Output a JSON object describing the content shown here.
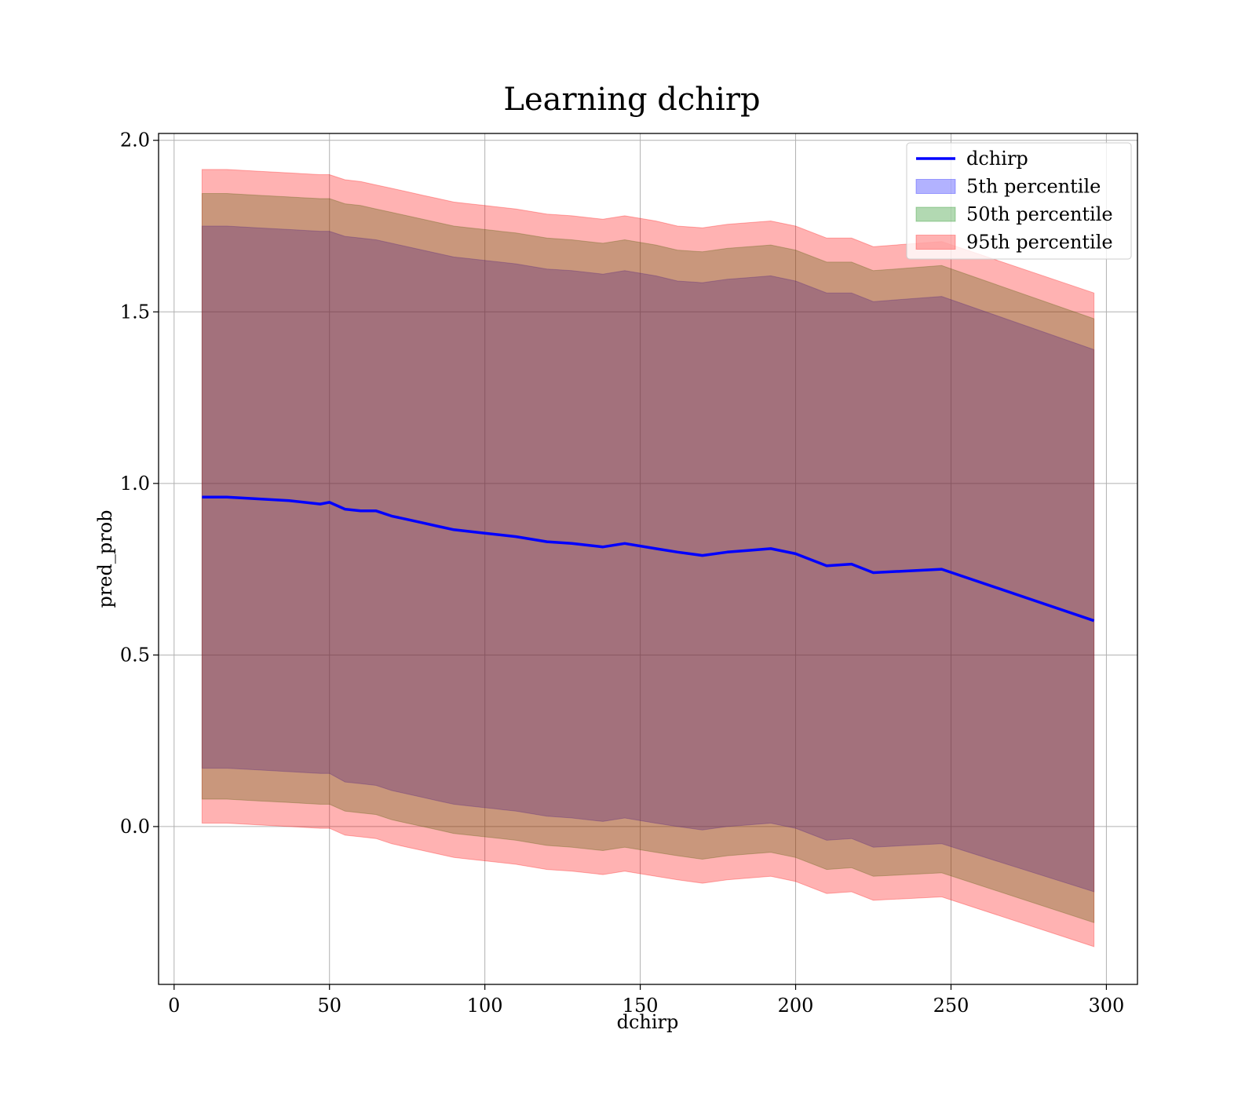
{
  "chart_data": {
    "type": "area",
    "title": "Learning dchirp",
    "xlabel": "dchirp",
    "ylabel": "pred_prob",
    "xlim": [
      -5,
      310
    ],
    "ylim": [
      -0.46,
      2.02
    ],
    "xticks": [
      "0",
      "50",
      "100",
      "150",
      "200",
      "250",
      "300"
    ],
    "yticks": [
      "0.0",
      "0.5",
      "1.0",
      "1.5",
      "2.0"
    ],
    "grid": true,
    "legend_position": "top-right",
    "x": [
      9,
      17,
      27,
      37,
      47,
      50,
      55,
      60,
      65,
      70,
      75,
      80,
      85,
      90,
      95,
      100,
      110,
      120,
      128,
      138,
      145,
      155,
      162,
      170,
      178,
      185,
      192,
      200,
      210,
      218,
      225,
      247,
      296
    ],
    "line": {
      "name": "dchirp",
      "color": "#0000ff",
      "values": [
        0.96,
        0.96,
        0.955,
        0.95,
        0.94,
        0.945,
        0.925,
        0.92,
        0.92,
        0.905,
        0.895,
        0.885,
        0.875,
        0.865,
        0.86,
        0.855,
        0.845,
        0.83,
        0.825,
        0.815,
        0.825,
        0.81,
        0.8,
        0.79,
        0.8,
        0.805,
        0.81,
        0.795,
        0.76,
        0.765,
        0.74,
        0.75,
        0.6
      ]
    },
    "bands": [
      {
        "name": "5th percentile",
        "color": "#0000ff",
        "opacity": 0.3,
        "lower": [
          0.17,
          0.17,
          0.165,
          0.16,
          0.155,
          0.155,
          0.13,
          0.125,
          0.12,
          0.105,
          0.095,
          0.085,
          0.075,
          0.065,
          0.06,
          0.055,
          0.045,
          0.03,
          0.025,
          0.015,
          0.025,
          0.01,
          0.0,
          -0.01,
          0.0,
          0.005,
          0.01,
          -0.005,
          -0.04,
          -0.035,
          -0.06,
          -0.05,
          -0.19
        ],
        "upper": [
          1.75,
          1.75,
          1.745,
          1.74,
          1.735,
          1.735,
          1.72,
          1.715,
          1.71,
          1.7,
          1.69,
          1.68,
          1.67,
          1.66,
          1.655,
          1.65,
          1.64,
          1.625,
          1.62,
          1.61,
          1.62,
          1.605,
          1.59,
          1.585,
          1.595,
          1.6,
          1.605,
          1.59,
          1.555,
          1.555,
          1.53,
          1.545,
          1.39
        ]
      },
      {
        "name": "50th percentile",
        "color": "#008000",
        "opacity": 0.3,
        "lower": [
          0.08,
          0.08,
          0.075,
          0.07,
          0.065,
          0.065,
          0.045,
          0.04,
          0.035,
          0.02,
          0.01,
          0.0,
          -0.01,
          -0.02,
          -0.025,
          -0.03,
          -0.04,
          -0.055,
          -0.06,
          -0.07,
          -0.06,
          -0.075,
          -0.085,
          -0.095,
          -0.085,
          -0.08,
          -0.075,
          -0.09,
          -0.125,
          -0.12,
          -0.145,
          -0.135,
          -0.28
        ],
        "upper": [
          1.845,
          1.845,
          1.84,
          1.835,
          1.83,
          1.83,
          1.815,
          1.81,
          1.8,
          1.79,
          1.78,
          1.77,
          1.76,
          1.75,
          1.745,
          1.74,
          1.73,
          1.715,
          1.71,
          1.7,
          1.71,
          1.695,
          1.68,
          1.675,
          1.685,
          1.69,
          1.695,
          1.68,
          1.645,
          1.645,
          1.62,
          1.635,
          1.48
        ]
      },
      {
        "name": "95th percentile",
        "color": "#ff0000",
        "opacity": 0.3,
        "lower": [
          0.01,
          0.01,
          0.005,
          0.0,
          -0.005,
          -0.005,
          -0.025,
          -0.03,
          -0.035,
          -0.05,
          -0.06,
          -0.07,
          -0.08,
          -0.09,
          -0.095,
          -0.1,
          -0.11,
          -0.125,
          -0.13,
          -0.14,
          -0.13,
          -0.145,
          -0.155,
          -0.165,
          -0.155,
          -0.15,
          -0.145,
          -0.16,
          -0.195,
          -0.19,
          -0.215,
          -0.205,
          -0.35
        ],
        "upper": [
          1.915,
          1.915,
          1.91,
          1.905,
          1.9,
          1.9,
          1.885,
          1.88,
          1.87,
          1.86,
          1.85,
          1.84,
          1.83,
          1.82,
          1.815,
          1.81,
          1.8,
          1.785,
          1.78,
          1.77,
          1.78,
          1.765,
          1.75,
          1.745,
          1.755,
          1.76,
          1.765,
          1.75,
          1.715,
          1.715,
          1.69,
          1.705,
          1.555
        ]
      }
    ]
  }
}
